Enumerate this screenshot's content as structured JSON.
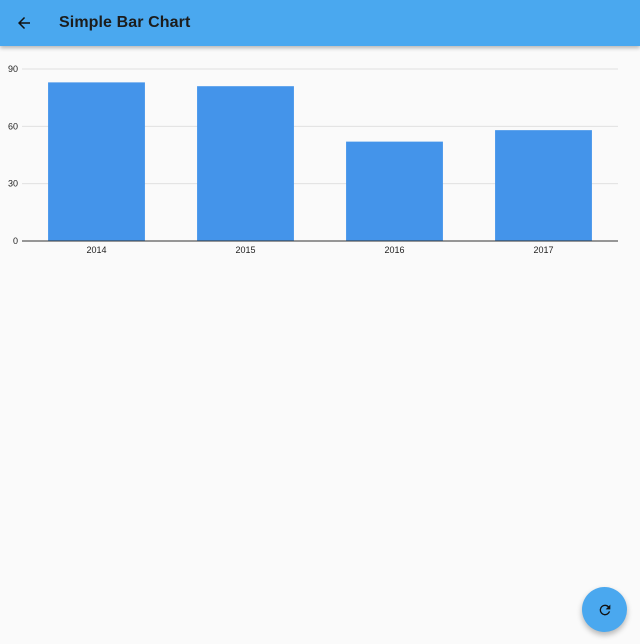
{
  "app_bar": {
    "title": "Simple Bar Chart",
    "background": "#4aa8ef",
    "back_icon": "arrow-left-icon"
  },
  "fab": {
    "icon": "refresh-icon",
    "background": "#4aa8ef"
  },
  "chart_data": {
    "type": "bar",
    "categories": [
      "2014",
      "2015",
      "2016",
      "2017"
    ],
    "values": [
      83,
      81,
      52,
      58
    ],
    "title": "",
    "xlabel": "",
    "ylabel": "",
    "ylim": [
      0,
      90
    ],
    "yticks": [
      "0",
      "30",
      "60",
      "90"
    ],
    "grid": true,
    "bar_color": "#4494ea"
  }
}
